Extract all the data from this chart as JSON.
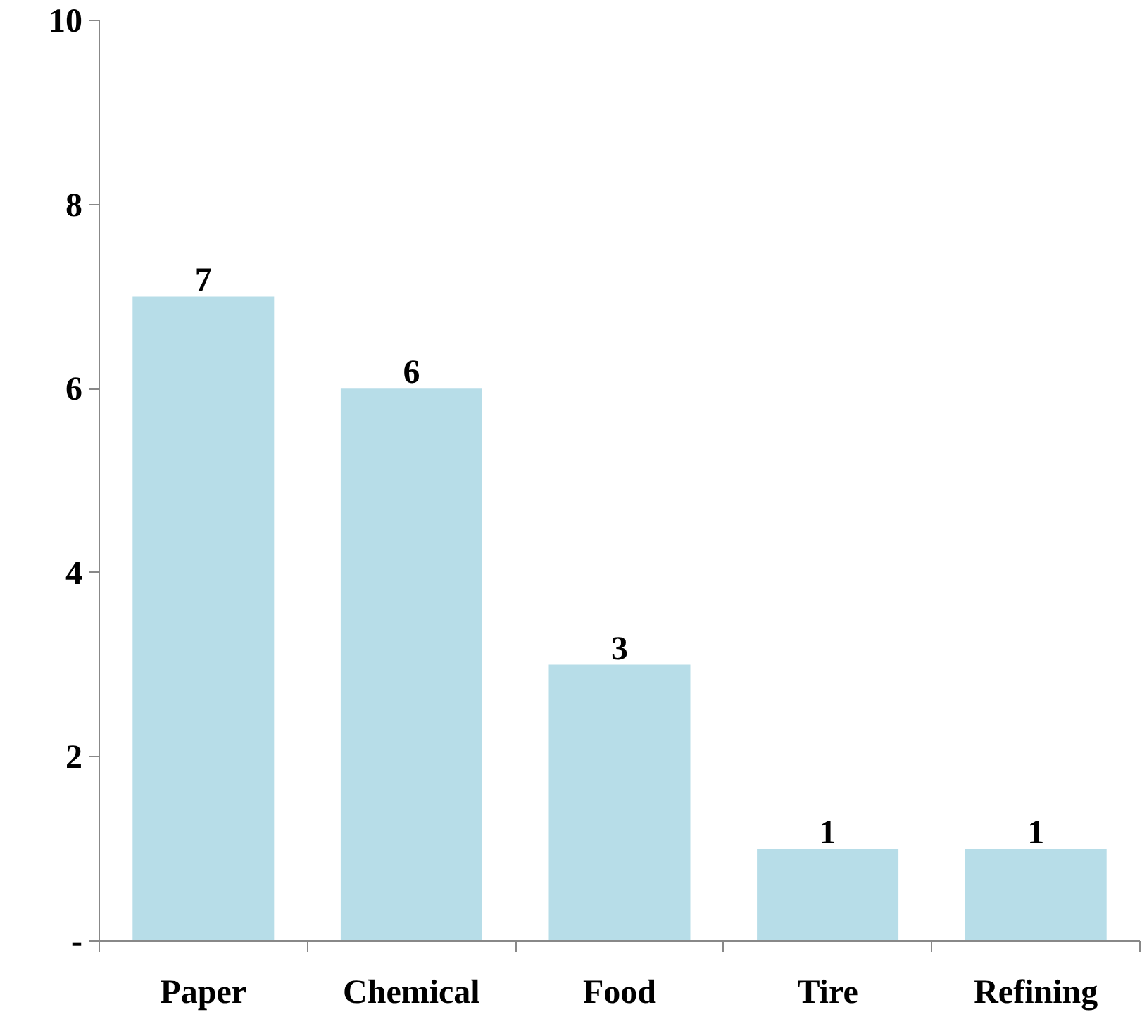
{
  "chart_data": {
    "type": "bar",
    "categories": [
      "Paper",
      "Chemical",
      "Food",
      "Tire",
      "Refining"
    ],
    "values": [
      7,
      6,
      3,
      1,
      1
    ],
    "color": "#b7dde8",
    "ylim": [
      0,
      10
    ],
    "yticks": [
      {
        "value": 0,
        "label": "-"
      },
      2,
      4,
      6,
      8,
      10
    ],
    "data_labels": true,
    "grid": false
  }
}
